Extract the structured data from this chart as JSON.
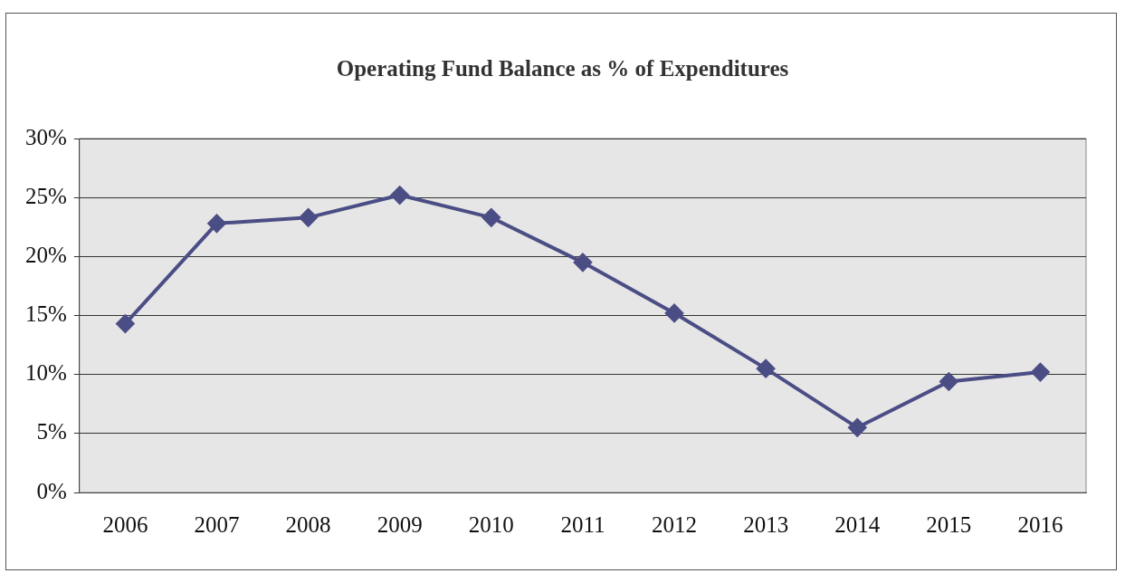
{
  "chart_data": {
    "type": "line",
    "title": "Operating Fund Balance as % of Expenditures",
    "categories": [
      "2006",
      "2007",
      "2008",
      "2009",
      "2010",
      "2011",
      "2012",
      "2013",
      "2014",
      "2015",
      "2016"
    ],
    "series": [
      {
        "color": "#4b4d85",
        "values": [
          14.3,
          22.8,
          23.3,
          25.2,
          23.3,
          19.5,
          15.2,
          10.5,
          5.5,
          9.4,
          10.2
        ]
      }
    ],
    "ylim": [
      0,
      30
    ],
    "yticks": [
      {
        "value": 0,
        "label": "0%"
      },
      {
        "value": 5,
        "label": "5%"
      },
      {
        "value": 10,
        "label": "10%"
      },
      {
        "value": 15,
        "label": "15%"
      },
      {
        "value": 20,
        "label": "20%"
      },
      {
        "value": 25,
        "label": "25%"
      },
      {
        "value": 30,
        "label": "30%"
      }
    ],
    "grid": "y",
    "legend": false,
    "marker": "diamond",
    "line_style": "solid"
  }
}
